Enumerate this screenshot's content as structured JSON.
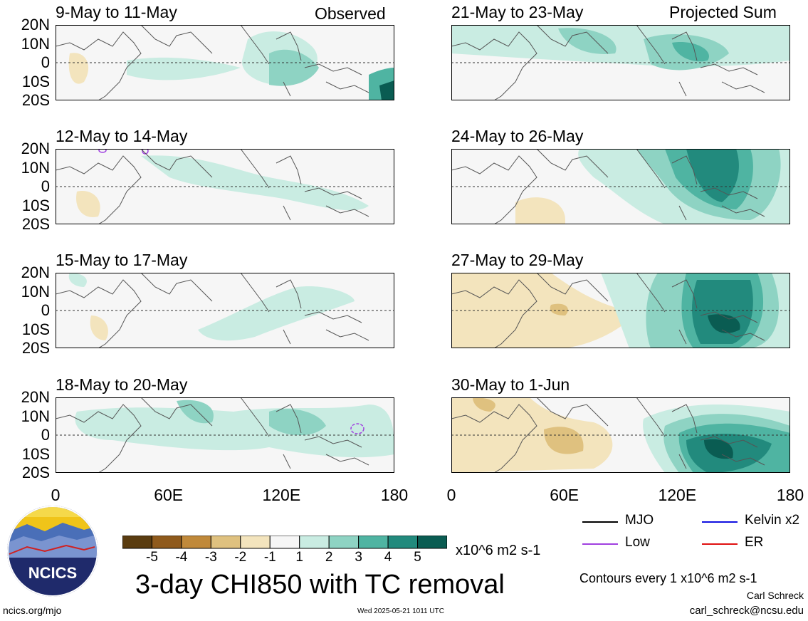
{
  "panels": [
    {
      "title": "9-May to 11-May",
      "tag": "Observed"
    },
    {
      "title": "12-May to 14-May",
      "tag": ""
    },
    {
      "title": "15-May to 17-May",
      "tag": ""
    },
    {
      "title": "18-May to 20-May",
      "tag": ""
    },
    {
      "title": "21-May to 23-May",
      "tag": "Projected Sum"
    },
    {
      "title": "24-May to 26-May",
      "tag": ""
    },
    {
      "title": "27-May to 29-May",
      "tag": ""
    },
    {
      "title": "30-May to 1-Jun",
      "tag": ""
    }
  ],
  "lat_labels": [
    "20N",
    "10N",
    "0",
    "10S",
    "20S"
  ],
  "lon_labels": [
    "0",
    "60E",
    "120E",
    "180"
  ],
  "colorbar": {
    "ticks": [
      "-5",
      "-4",
      "-3",
      "-2",
      "-1",
      "1",
      "2",
      "3",
      "4",
      "5"
    ],
    "colors": [
      "#5a3c10",
      "#8f5a1c",
      "#c0893a",
      "#dfc17f",
      "#f3e4bd",
      "#f6f6f6",
      "#c9ece2",
      "#8ed3c3",
      "#4fb4a2",
      "#228a7d",
      "#0a5c52"
    ],
    "units": "x10^6 m2 s-1"
  },
  "line_legend": [
    {
      "label": "MJO",
      "color": "#000000"
    },
    {
      "label": "Kelvin x2",
      "color": "#1010e0"
    },
    {
      "label": "Low",
      "color": "#a040e0"
    },
    {
      "label": "ER",
      "color": "#e01010"
    }
  ],
  "main_title": "3-day CHI850 with TC removal",
  "contour_note": "Contours every 1 x10^6 m2 s-1",
  "author": "Carl Schreck",
  "email": "carl_schreck@ncsu.edu",
  "website": "ncics.org/mjo",
  "timestamp": "Wed 2025-05-21 1011 UTC",
  "logo_text": "NCICS"
}
